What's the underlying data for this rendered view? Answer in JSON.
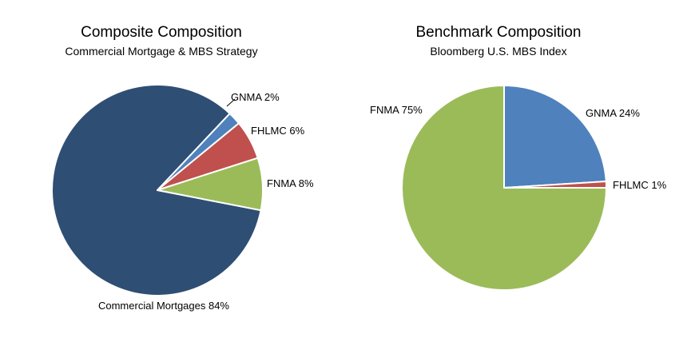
{
  "chart_data": [
    {
      "type": "pie",
      "title": "Composite Composition",
      "subtitle": "Commercial Mortgage & MBS Strategy",
      "slices": [
        {
          "name": "Commercial Mortgages",
          "value": 84,
          "label": "Commercial Mortgages 84%",
          "color": "#2e4e74"
        },
        {
          "name": "GNMA",
          "value": 2,
          "label": "GNMA 2%",
          "color": "#4f81bd"
        },
        {
          "name": "FHLMC",
          "value": 6,
          "label": "FHLMC 6%",
          "color": "#c0504d"
        },
        {
          "name": "FNMA",
          "value": 8,
          "label": "FNMA 8%",
          "color": "#9bbb59"
        }
      ]
    },
    {
      "type": "pie",
      "title": "Benchmark Composition",
      "subtitle": "Bloomberg U.S. MBS Index",
      "slices": [
        {
          "name": "GNMA",
          "value": 24,
          "label": "GNMA 24%",
          "color": "#4f81bd"
        },
        {
          "name": "FHLMC",
          "value": 1,
          "label": "FHLMC  1%",
          "color": "#c0504d"
        },
        {
          "name": "FNMA",
          "value": 75,
          "label": "FNMA  75%",
          "color": "#9bbb59"
        }
      ]
    }
  ]
}
